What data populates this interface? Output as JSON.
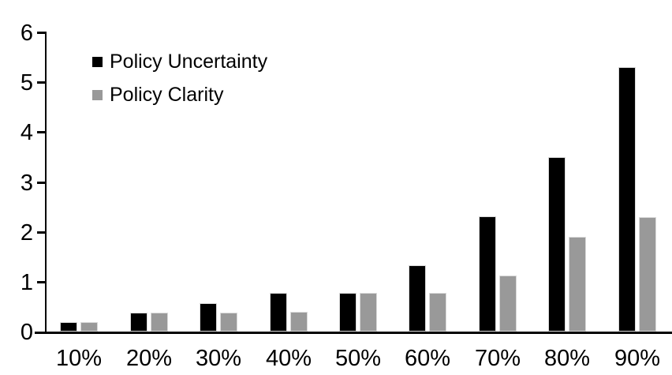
{
  "chart_data": {
    "type": "bar",
    "title": "",
    "categories": [
      "10%",
      "20%",
      "30%",
      "40%",
      "50%",
      "60%",
      "70%",
      "80%",
      "90%"
    ],
    "series": [
      {
        "name": "Policy Uncertainty",
        "color": "#000000",
        "values": [
          0.19,
          0.38,
          0.57,
          0.77,
          0.78,
          1.33,
          2.31,
          3.5,
          5.3
        ]
      },
      {
        "name": "Policy Clarity",
        "color": "#999999",
        "values": [
          0.19,
          0.38,
          0.38,
          0.39,
          0.77,
          0.77,
          1.13,
          1.9,
          2.3
        ]
      }
    ],
    "xlabel": "",
    "ylabel": "",
    "ylim": [
      0,
      6
    ],
    "yticks": [
      0,
      1,
      2,
      3,
      4,
      5,
      6
    ],
    "grid": false,
    "legend_position": "top-left"
  },
  "colors": {
    "background": "#ffffff",
    "axis": "#000000",
    "text": "#000000",
    "bar_border": "#d9d9d9"
  }
}
